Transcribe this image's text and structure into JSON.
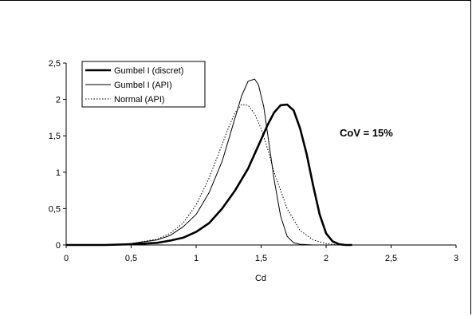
{
  "chart_data": {
    "type": "line",
    "title": "",
    "xlabel": "Cd",
    "ylabel": "",
    "xlim": [
      0,
      3
    ],
    "ylim": [
      0,
      2.5
    ],
    "x_ticks": [
      "0",
      "0,5",
      "1",
      "1,5",
      "2",
      "2,5",
      "3"
    ],
    "y_ticks": [
      "0",
      "0,5",
      "1",
      "1,5",
      "2",
      "2,5"
    ],
    "grid": false,
    "legend_position": "top-left",
    "annotation": "CoV = 15%",
    "series": [
      {
        "name": "Gumbel I (discret)",
        "style": "solid-thick",
        "color": "#000000",
        "x": [
          0.3,
          0.5,
          0.7,
          0.8,
          0.9,
          1.0,
          1.1,
          1.2,
          1.3,
          1.4,
          1.5,
          1.55,
          1.6,
          1.65,
          1.7,
          1.75,
          1.8,
          1.85,
          1.9,
          1.95,
          2.0,
          2.05,
          2.1,
          2.15,
          2.2
        ],
        "y": [
          0.0,
          0.01,
          0.03,
          0.06,
          0.1,
          0.18,
          0.3,
          0.5,
          0.75,
          1.05,
          1.45,
          1.65,
          1.82,
          1.92,
          1.93,
          1.85,
          1.6,
          1.25,
          0.82,
          0.42,
          0.16,
          0.05,
          0.01,
          0.0,
          0.0
        ]
      },
      {
        "name": "Gumbel I (API)",
        "style": "solid-thin",
        "color": "#000000",
        "x": [
          0.3,
          0.5,
          0.7,
          0.8,
          0.9,
          1.0,
          1.1,
          1.2,
          1.25,
          1.3,
          1.35,
          1.4,
          1.45,
          1.48,
          1.52,
          1.56,
          1.6,
          1.65,
          1.7,
          1.75,
          1.8,
          1.9
        ],
        "y": [
          0.0,
          0.02,
          0.07,
          0.13,
          0.25,
          0.42,
          0.72,
          1.15,
          1.45,
          1.75,
          2.05,
          2.25,
          2.28,
          2.2,
          1.9,
          1.4,
          0.9,
          0.4,
          0.12,
          0.03,
          0.01,
          0.0
        ]
      },
      {
        "name": "Normal (API)",
        "style": "dotted",
        "color": "#000000",
        "x": [
          0.3,
          0.5,
          0.7,
          0.8,
          0.9,
          1.0,
          1.1,
          1.2,
          1.25,
          1.3,
          1.35,
          1.4,
          1.45,
          1.5,
          1.55,
          1.6,
          1.7,
          1.8,
          1.9,
          2.0,
          2.1
        ],
        "y": [
          0.0,
          0.02,
          0.08,
          0.16,
          0.3,
          0.55,
          0.92,
          1.38,
          1.62,
          1.82,
          1.93,
          1.92,
          1.8,
          1.6,
          1.32,
          1.0,
          0.5,
          0.2,
          0.07,
          0.02,
          0.0
        ]
      }
    ]
  }
}
